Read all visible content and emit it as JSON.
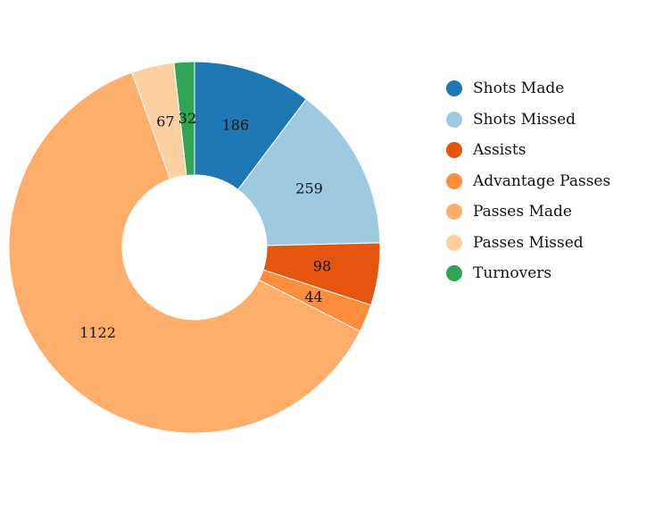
{
  "chart_data": {
    "type": "pie",
    "variant": "donut",
    "legend_position": "right",
    "categories": [
      "Shots Made",
      "Shots Missed",
      "Assists",
      "Advantage Passes",
      "Passes Made",
      "Passes Missed",
      "Turnovers"
    ],
    "values": [
      186,
      259,
      98,
      44,
      1122,
      67,
      32
    ],
    "colors": [
      "#1f77b4",
      "#9ecae1",
      "#e6550d",
      "#fd8d3c",
      "#fdae6b",
      "#fdd0a2",
      "#31a354"
    ],
    "data_labels": [
      "186",
      "259",
      "98",
      "44",
      "1122",
      "67",
      "32"
    ]
  }
}
